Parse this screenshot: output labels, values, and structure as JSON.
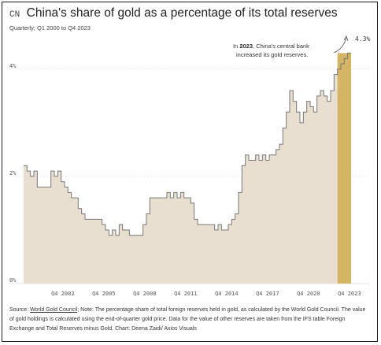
{
  "header": {
    "flag": "CN",
    "title": "China's share of gold as a percentage of its total reserves",
    "subtitle": "Quarterly; Q1 2000 to Q4 2023"
  },
  "annotation": {
    "bold": "2023",
    "text1": ", China's central bank",
    "text2": "increased its gold reserves."
  },
  "last_value_label": "4.3%",
  "footer": {
    "prefix": "Source: ",
    "link": "World Gold Council",
    "text": "; Note: The percentage share of total foreign reserves held in gold, as calculated by the World Gold Council. The value of gold holdings is calculated using the end-of-quarter gold price. Data for the value of other reserves are taken from the IFS table Foreign Exchange and Total Reserves minus Gold. Chart: Deena Zaidi/ Axios Visuals"
  },
  "colors": {
    "area_fill": "#e8dfd0",
    "line": "#777777",
    "highlight": "#d4b566",
    "grid": "#dddddd"
  },
  "chart_data": {
    "type": "area",
    "title": "China's share of gold as a percentage of its total reserves",
    "subtitle": "Quarterly; Q1 2000 to Q4 2023",
    "x_start": "Q1 2000",
    "x_end": "Q4 2023",
    "ylim": [
      0,
      4.6
    ],
    "y_ticks": [
      {
        "value": 0,
        "label": "0%"
      },
      {
        "value": 2,
        "label": "2%"
      },
      {
        "value": 4,
        "label": "4%"
      }
    ],
    "x_ticks": [
      {
        "label": "Q4 2002",
        "index": 11
      },
      {
        "label": "Q4 2005",
        "index": 23
      },
      {
        "label": "Q4 2008",
        "index": 35
      },
      {
        "label": "Q4 2011",
        "index": 47
      },
      {
        "label": "Q4 2014",
        "index": 59
      },
      {
        "label": "Q4 2017",
        "index": 71
      },
      {
        "label": "Q4 2020",
        "index": 83
      },
      {
        "label": "Q4 2023",
        "index": 95
      }
    ],
    "highlight_from_index": 92,
    "values": [
      2.2,
      2.1,
      2.0,
      2.1,
      1.8,
      1.8,
      1.8,
      1.8,
      2.1,
      2.0,
      2.1,
      1.9,
      1.8,
      1.7,
      1.6,
      1.6,
      1.4,
      1.3,
      1.2,
      1.2,
      1.2,
      1.2,
      1.2,
      1.1,
      1.0,
      0.9,
      1.0,
      0.9,
      1.1,
      1.0,
      1.0,
      0.9,
      0.9,
      0.9,
      0.9,
      1.1,
      1.3,
      1.6,
      1.6,
      1.6,
      1.6,
      1.6,
      1.7,
      1.6,
      1.7,
      1.6,
      1.7,
      1.6,
      1.6,
      1.5,
      1.2,
      1.1,
      1.1,
      1.1,
      1.1,
      1.1,
      1.0,
      1.1,
      1.0,
      1.0,
      1.1,
      1.2,
      1.3,
      1.7,
      2.2,
      2.4,
      2.3,
      2.3,
      2.4,
      2.3,
      2.4,
      2.3,
      2.4,
      2.4,
      2.5,
      2.6,
      2.9,
      3.2,
      3.6,
      3.4,
      3.2,
      3.0,
      3.2,
      3.4,
      3.3,
      3.2,
      3.5,
      3.6,
      3.5,
      3.4,
      3.6,
      3.9,
      4.0,
      4.1,
      4.2,
      4.3
    ]
  }
}
